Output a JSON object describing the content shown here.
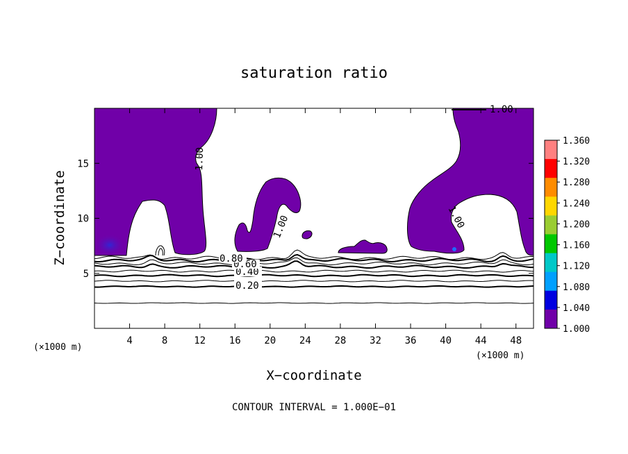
{
  "chart_data": {
    "type": "heatmap",
    "title": "saturation ratio",
    "xlabel": "X−coordinate",
    "ylabel": "Z−coordinate",
    "x_unit": "(×1000 m)",
    "x_unit_right": "(×1000 m)",
    "xlim": [
      0,
      50
    ],
    "ylim": [
      0,
      20
    ],
    "x_ticks": [
      4,
      8,
      12,
      16,
      20,
      24,
      28,
      32,
      36,
      40,
      44,
      48
    ],
    "y_ticks": [
      5,
      10,
      15
    ],
    "contour_interval_text": "CONTOUR INTERVAL = 1.000E−01",
    "colorbar": {
      "ticks": [
        "1.360",
        "1.320",
        "1.280",
        "1.240",
        "1.200",
        "1.160",
        "1.120",
        "1.080",
        "1.040",
        "1.000"
      ],
      "range": [
        1.0,
        1.36
      ]
    },
    "contour_labels": [
      "1.00",
      "1.00",
      "1.00",
      "1.00",
      "0.20",
      "0.40",
      "0.60",
      "0.80"
    ],
    "contour_levels_lower": [
      0.1,
      0.2,
      0.3,
      0.4,
      0.5,
      0.6,
      0.7,
      0.8,
      0.9
    ],
    "contour_level_heights_km": [
      2.3,
      3.8,
      4.3,
      4.8,
      5.2,
      5.6,
      5.9,
      6.2,
      6.4
    ],
    "saturated_fill_color": "#7000a8",
    "colorbar_colors": [
      "#ff8080",
      "#ff0000",
      "#ff8c00",
      "#ffd700",
      "#9acd32",
      "#00c800",
      "#00c8c8",
      "#00a0ff",
      "#0000e0",
      "#7000a8"
    ]
  }
}
